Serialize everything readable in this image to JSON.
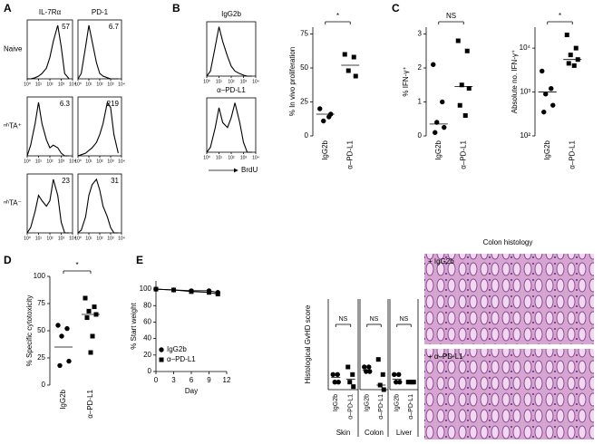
{
  "panel_labels": [
    "A",
    "B",
    "C",
    "D",
    "E"
  ],
  "image_title": "Colon histology",
  "images": [
    {
      "label": "+ IgG2b"
    },
    {
      "label": "+ α–PD-L1"
    }
  ],
  "chart_data": [
    {
      "type": "flow",
      "title": "IL-7Rα",
      "row_label": "Naive",
      "annotation": "57",
      "log": true,
      "xlim": [
        1,
        10000
      ],
      "ylim": [
        0,
        110
      ],
      "xticks": [
        {
          "value": 1,
          "label": "10⁰"
        },
        {
          "value": 10,
          "label": "10¹"
        },
        {
          "value": 100,
          "label": "10²"
        },
        {
          "value": 1000,
          "label": "10³"
        },
        {
          "value": 10000,
          "label": "10⁴"
        }
      ],
      "x": [
        1,
        2,
        5,
        10,
        20,
        50,
        100,
        200,
        500,
        1000,
        2000,
        5000
      ],
      "values": [
        0,
        0,
        2,
        5,
        10,
        20,
        40,
        70,
        100,
        60,
        10,
        0
      ]
    },
    {
      "type": "flow",
      "title": "PD-1",
      "annotation": "6.7",
      "log": true,
      "xlim": [
        1,
        10000
      ],
      "ylim": [
        0,
        110
      ],
      "xticks": [
        {
          "value": 1,
          "label": "10⁰"
        },
        {
          "value": 10,
          "label": "10¹"
        },
        {
          "value": 100,
          "label": "10²"
        },
        {
          "value": 1000,
          "label": "10³"
        },
        {
          "value": 10000,
          "label": "10⁴"
        }
      ],
      "x": [
        1,
        2,
        5,
        10,
        20,
        50,
        100,
        200,
        500,
        1000,
        2000,
        5000
      ],
      "values": [
        0,
        10,
        60,
        100,
        70,
        30,
        10,
        5,
        2,
        0,
        0,
        0
      ]
    },
    {
      "type": "flow",
      "row_label": "ⁿʰTA⁺",
      "annotation": "6.3",
      "log": true,
      "xlim": [
        1,
        10000
      ],
      "ylim": [
        0,
        110
      ],
      "xticks": [
        {
          "value": 1,
          "label": "10⁰"
        },
        {
          "value": 10,
          "label": "10¹"
        },
        {
          "value": 100,
          "label": "10²"
        },
        {
          "value": 1000,
          "label": "10³"
        },
        {
          "value": 10000,
          "label": "10⁴"
        }
      ],
      "x": [
        1,
        2,
        5,
        10,
        20,
        50,
        100,
        200,
        500,
        1000,
        2000,
        5000
      ],
      "values": [
        0,
        20,
        60,
        100,
        60,
        30,
        15,
        20,
        15,
        5,
        0,
        0
      ]
    },
    {
      "type": "flow",
      "annotation": "219",
      "log": true,
      "xlim": [
        1,
        10000
      ],
      "ylim": [
        0,
        110
      ],
      "xticks": [
        {
          "value": 1,
          "label": "10⁰"
        },
        {
          "value": 10,
          "label": "10¹"
        },
        {
          "value": 100,
          "label": "10²"
        },
        {
          "value": 1000,
          "label": "10³"
        },
        {
          "value": 10000,
          "label": "10⁴"
        }
      ],
      "x": [
        1,
        2,
        5,
        10,
        20,
        50,
        100,
        200,
        500,
        1000,
        2000,
        5000
      ],
      "values": [
        0,
        2,
        5,
        10,
        15,
        25,
        40,
        60,
        100,
        90,
        40,
        5
      ]
    },
    {
      "type": "flow",
      "row_label": "ⁿʰTA⁻",
      "annotation": "23",
      "log": true,
      "xlim": [
        1,
        10000
      ],
      "ylim": [
        0,
        110
      ],
      "xticks": [
        {
          "value": 1,
          "label": "10⁰"
        },
        {
          "value": 10,
          "label": "10¹"
        },
        {
          "value": 100,
          "label": "10²"
        },
        {
          "value": 1000,
          "label": "10³"
        },
        {
          "value": 10000,
          "label": "10⁴"
        }
      ],
      "x": [
        1,
        2,
        5,
        10,
        20,
        50,
        100,
        200,
        500,
        1000,
        2000,
        5000
      ],
      "values": [
        0,
        10,
        40,
        70,
        60,
        50,
        60,
        100,
        70,
        20,
        0,
        0
      ]
    },
    {
      "type": "flow",
      "annotation": "31",
      "log": true,
      "xlim": [
        1,
        10000
      ],
      "ylim": [
        0,
        110
      ],
      "xticks": [
        {
          "value": 1,
          "label": "10⁰"
        },
        {
          "value": 10,
          "label": "10¹"
        },
        {
          "value": 100,
          "label": "10²"
        },
        {
          "value": 1000,
          "label": "10³"
        },
        {
          "value": 10000,
          "label": "10⁴"
        }
      ],
      "x": [
        1,
        2,
        5,
        10,
        20,
        50,
        100,
        200,
        500,
        1000,
        2000,
        5000
      ],
      "values": [
        0,
        5,
        30,
        70,
        90,
        100,
        80,
        50,
        30,
        10,
        0,
        0
      ]
    },
    {
      "type": "flow",
      "title": "IgG2b",
      "log": true,
      "xlim": [
        1,
        10000
      ],
      "ylim": [
        0,
        110
      ],
      "xticks": [
        {
          "value": 1,
          "label": "10⁰"
        },
        {
          "value": 10,
          "label": "10¹"
        },
        {
          "value": 100,
          "label": "10²"
        },
        {
          "value": 1000,
          "label": "10³"
        },
        {
          "value": 10000,
          "label": "10⁴"
        }
      ],
      "x": [
        1,
        2,
        5,
        10,
        20,
        50,
        100,
        200,
        500,
        1000,
        2000,
        5000
      ],
      "values": [
        0,
        10,
        60,
        100,
        70,
        40,
        20,
        10,
        5,
        2,
        0,
        0
      ]
    },
    {
      "type": "flow",
      "title": "α–PD-L1",
      "xlabel": "BrdU",
      "log": true,
      "xlim": [
        1,
        10000
      ],
      "ylim": [
        0,
        110
      ],
      "xticks": [
        {
          "value": 1,
          "label": "10⁰"
        },
        {
          "value": 10,
          "label": "10¹"
        },
        {
          "value": 100,
          "label": "10²"
        },
        {
          "value": 1000,
          "label": "10³"
        },
        {
          "value": 10000,
          "label": "10⁴"
        }
      ],
      "x": [
        1,
        2,
        5,
        10,
        20,
        50,
        100,
        200,
        500,
        1000,
        2000,
        5000
      ],
      "values": [
        0,
        10,
        50,
        90,
        60,
        50,
        70,
        100,
        60,
        20,
        0,
        0
      ]
    },
    {
      "type": "dot",
      "ylabel": "% In vivo proliferation",
      "annotation": "*",
      "ylim": [
        0,
        80
      ],
      "yticks": [
        0,
        25,
        50,
        75
      ],
      "groups": [
        {
          "name": "IgG2b",
          "marker": "circle",
          "values": [
            20,
            14,
            11,
            16
          ],
          "center": 16
        },
        {
          "name": "α–PD-L1",
          "marker": "square",
          "values": [
            60,
            58,
            48,
            44
          ],
          "center": 52
        }
      ]
    },
    {
      "type": "dot",
      "ylabel": "% IFN-γ⁺",
      "annotation": "NS",
      "ylim": [
        0,
        3.2
      ],
      "yticks": [
        0,
        1,
        2,
        3
      ],
      "groups": [
        {
          "name": "IgG2b",
          "marker": "circle",
          "values": [
            2.1,
            1.0,
            0.4,
            0.25,
            0.1
          ],
          "center": 0.35
        },
        {
          "name": "α–PD-L1",
          "marker": "square",
          "values": [
            2.8,
            2.5,
            1.5,
            1.4,
            0.9,
            0.6
          ],
          "center": 1.45
        }
      ]
    },
    {
      "type": "dot",
      "ylabel": "Absolute no. IFN-γ⁺",
      "annotation": "*",
      "log": true,
      "ylim": [
        100,
        30000
      ],
      "yticks": [
        {
          "value": 100,
          "label": "10²"
        },
        {
          "value": 1000,
          "label": "10³"
        },
        {
          "value": 10000,
          "label": "10⁴"
        }
      ],
      "groups": [
        {
          "name": "IgG2b",
          "marker": "circle",
          "values": [
            3000,
            1200,
            900,
            500,
            350
          ],
          "center": 1000
        },
        {
          "name": "α–PD-L1",
          "marker": "square",
          "values": [
            20000,
            10000,
            7000,
            5500,
            4500,
            4000
          ],
          "center": 5500
        }
      ]
    },
    {
      "type": "dot",
      "ylabel": "% Specific cytotoxicity",
      "annotation": "*",
      "ylim": [
        0,
        100
      ],
      "yticks": [
        0,
        25,
        50,
        75,
        100
      ],
      "groups": [
        {
          "name": "IgG2b",
          "marker": "circle",
          "values": [
            55,
            52,
            45,
            22,
            18
          ],
          "center": 35
        },
        {
          "name": "α–PD-L1",
          "marker": "square",
          "values": [
            80,
            72,
            68,
            65,
            62,
            45,
            30
          ],
          "center": 65
        }
      ]
    },
    {
      "type": "line",
      "ylabel": "% Start weight",
      "xlabel": "Day",
      "xlim": [
        0,
        12
      ],
      "xticks": [
        0,
        3,
        6,
        9,
        12
      ],
      "ylim": [
        0,
        110
      ],
      "yticks": [
        0,
        20,
        40,
        60,
        80,
        100
      ],
      "legend": "lower left",
      "series": [
        {
          "name": "IgG2b",
          "marker": "circle",
          "x": [
            0,
            3,
            6,
            9,
            10.5
          ],
          "values": [
            100,
            99,
            98,
            98,
            96
          ]
        },
        {
          "name": "α–PD-L1",
          "marker": "square",
          "x": [
            0,
            3,
            6,
            9,
            10.5
          ],
          "values": [
            100,
            99,
            97,
            96,
            94
          ]
        }
      ]
    },
    {
      "type": "dot",
      "ylabel": "Histological GvHD score",
      "xlabel": "Skin",
      "annotation": "NS",
      "ylim": [
        0,
        6
      ],
      "groups": [
        {
          "name": "IgG2b",
          "marker": "circle",
          "values": [
            1,
            1,
            0.5,
            0.5
          ],
          "center": 0.8
        },
        {
          "name": "α–PD-L1",
          "marker": "square",
          "values": [
            1.5,
            1,
            0.5,
            0.2
          ],
          "center": 0.7
        }
      ]
    },
    {
      "type": "dot",
      "xlabel": "Colon",
      "annotation": "NS",
      "ylim": [
        0,
        6
      ],
      "groups": [
        {
          "name": "IgG2b",
          "marker": "circle",
          "values": [
            1.5,
            1.5,
            1.2,
            1.2
          ],
          "center": 1.3
        },
        {
          "name": "α–PD-L1",
          "marker": "square",
          "values": [
            2,
            1,
            0.3,
            0
          ],
          "center": 0.3
        }
      ]
    },
    {
      "type": "dot",
      "xlabel": "Liver",
      "annotation": "NS",
      "ylim": [
        0,
        6
      ],
      "groups": [
        {
          "name": "IgG2b",
          "marker": "circle",
          "values": [
            1,
            1,
            0.5,
            0.5
          ],
          "center": 0.7
        },
        {
          "name": "α–PD-L1",
          "marker": "square",
          "values": [
            0.5,
            0.5,
            0.5,
            0.5
          ],
          "center": 0.5
        }
      ]
    }
  ]
}
